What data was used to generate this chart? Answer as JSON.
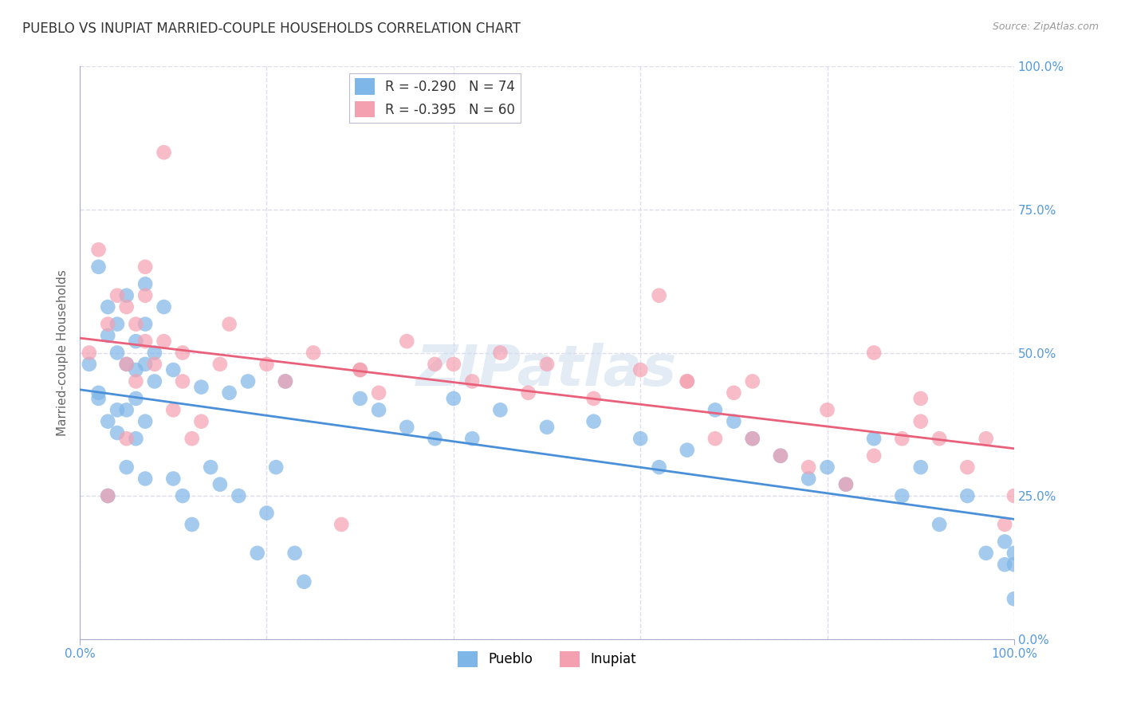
{
  "title": "PUEBLO VS INUPIAT MARRIED-COUPLE HOUSEHOLDS CORRELATION CHART",
  "source": "Source: ZipAtlas.com",
  "ylabel": "Married-couple Households",
  "ytick_positions": [
    0,
    25,
    50,
    75,
    100
  ],
  "xtick_positions": [
    0,
    20,
    40,
    60,
    80,
    100
  ],
  "watermark": "ZIPatlas",
  "legend_pueblo_R": "-0.290",
  "legend_pueblo_N": "74",
  "legend_inupiat_R": "-0.395",
  "legend_inupiat_N": "60",
  "pueblo_color": "#7EB6E8",
  "inupiat_color": "#F4A0B0",
  "pueblo_line_color": "#4A90D9",
  "inupiat_line_color": "#E8607A",
  "background_color": "#FFFFFF",
  "grid_color": "#DDDDEE",
  "title_color": "#333333",
  "axis_label_color": "#5599DD",
  "pueblo_scatter_x": [
    1,
    2,
    2,
    3,
    3,
    4,
    4,
    5,
    5,
    5,
    6,
    6,
    6,
    7,
    7,
    7,
    7,
    8,
    8,
    9,
    10,
    10,
    11,
    12,
    13,
    14,
    15,
    16,
    17,
    18,
    19,
    20,
    21,
    22,
    23,
    24,
    30,
    32,
    35,
    38,
    40,
    42,
    45,
    50,
    55,
    60,
    62,
    65,
    68,
    70,
    72,
    75,
    78,
    80,
    82,
    85,
    88,
    90,
    92,
    95,
    97,
    99,
    99,
    100,
    100,
    100,
    5,
    7,
    3,
    6,
    2,
    4,
    3,
    4
  ],
  "pueblo_scatter_y": [
    48,
    65,
    42,
    58,
    53,
    55,
    50,
    60,
    48,
    40,
    52,
    47,
    42,
    62,
    55,
    48,
    38,
    50,
    45,
    58,
    47,
    28,
    25,
    20,
    44,
    30,
    27,
    43,
    25,
    45,
    15,
    22,
    30,
    45,
    15,
    10,
    42,
    40,
    37,
    35,
    42,
    35,
    40,
    37,
    38,
    35,
    30,
    33,
    40,
    38,
    35,
    32,
    28,
    30,
    27,
    35,
    25,
    30,
    20,
    25,
    15,
    17,
    13,
    15,
    13,
    7,
    30,
    28,
    25,
    35,
    43,
    36,
    38,
    40
  ],
  "inupiat_scatter_x": [
    1,
    2,
    3,
    4,
    5,
    5,
    6,
    6,
    7,
    7,
    8,
    9,
    10,
    11,
    12,
    13,
    15,
    16,
    20,
    22,
    25,
    28,
    30,
    32,
    35,
    38,
    42,
    45,
    48,
    50,
    55,
    60,
    62,
    65,
    68,
    70,
    72,
    75,
    78,
    80,
    82,
    85,
    88,
    90,
    92,
    95,
    97,
    99,
    100,
    3,
    5,
    40,
    65,
    90,
    7,
    9,
    11,
    30,
    72,
    85
  ],
  "inupiat_scatter_y": [
    50,
    68,
    55,
    60,
    58,
    48,
    55,
    45,
    60,
    52,
    48,
    52,
    40,
    45,
    35,
    38,
    48,
    55,
    48,
    45,
    50,
    20,
    47,
    43,
    52,
    48,
    45,
    50,
    43,
    48,
    42,
    47,
    60,
    45,
    35,
    43,
    35,
    32,
    30,
    40,
    27,
    32,
    35,
    38,
    35,
    30,
    35,
    20,
    25,
    25,
    35,
    48,
    45,
    42,
    65,
    85,
    50,
    47,
    45,
    50
  ]
}
